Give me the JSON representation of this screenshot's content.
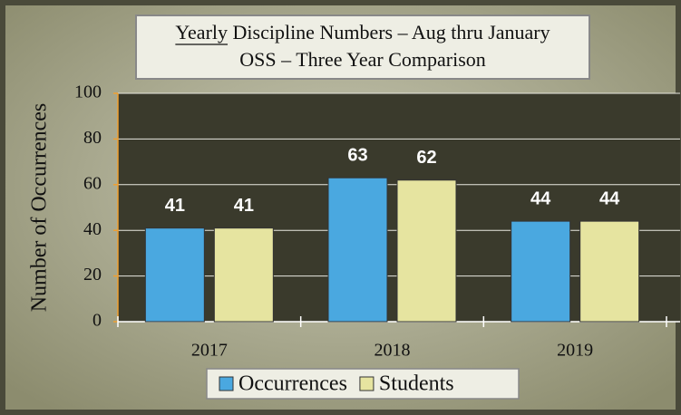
{
  "chart_data": {
    "type": "bar",
    "title": [
      "Yearly Discipline Numbers – Aug thru January",
      "OSS – Three Year Comparison"
    ],
    "y_label": "Number of Occurrences",
    "categories": [
      "2017",
      "2018",
      "2019"
    ],
    "series": [
      {
        "name": "Occurrences",
        "color": "#4aa8e0",
        "values": [
          41,
          63,
          44
        ]
      },
      {
        "name": "Students",
        "color": "#e6e4a0",
        "values": [
          41,
          62,
          44
        ]
      }
    ],
    "ylim": [
      0,
      100
    ],
    "yticks": [
      0,
      20,
      40,
      60,
      80,
      100
    ],
    "grid": true,
    "legend": "bottom"
  }
}
